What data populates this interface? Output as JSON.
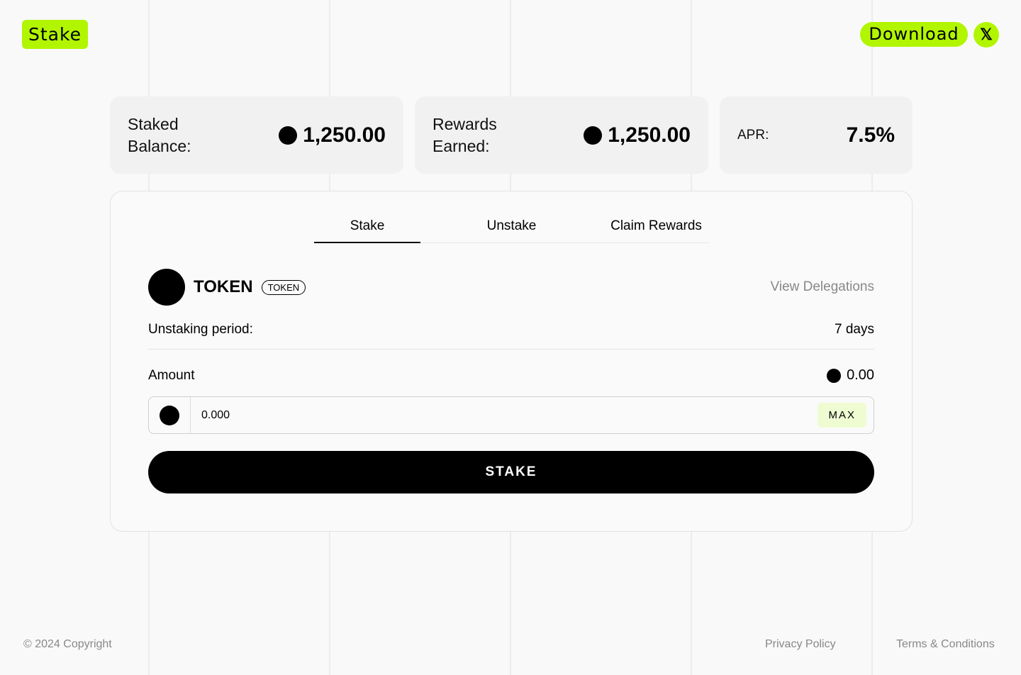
{
  "header": {
    "logo": "Stake",
    "download": "Download",
    "social_icon": "x-icon"
  },
  "stats": [
    {
      "label": "Staked Balance:",
      "value": "1,250.00"
    },
    {
      "label": "Rewards Earned:",
      "value": "1,250.00"
    },
    {
      "label": "APR:",
      "value": "7.5%"
    }
  ],
  "tabs": [
    "Stake",
    "Unstake",
    "Claim Rewards"
  ],
  "token": {
    "name": "TOKEN",
    "badge": "TOKEN",
    "view_delegations": "View Delegations"
  },
  "unstaking": {
    "label": "Unstaking period:",
    "value": "7 days"
  },
  "amount": {
    "label": "Amount",
    "balance": "0.00",
    "input_value": "0.000",
    "max": "MAX"
  },
  "stake_button": "STAKE",
  "footer": {
    "copyright": "© 2024 Copyright",
    "privacy": "Privacy Policy",
    "terms": "Terms & Conditions"
  },
  "colors": {
    "accent": "#b2f500"
  }
}
